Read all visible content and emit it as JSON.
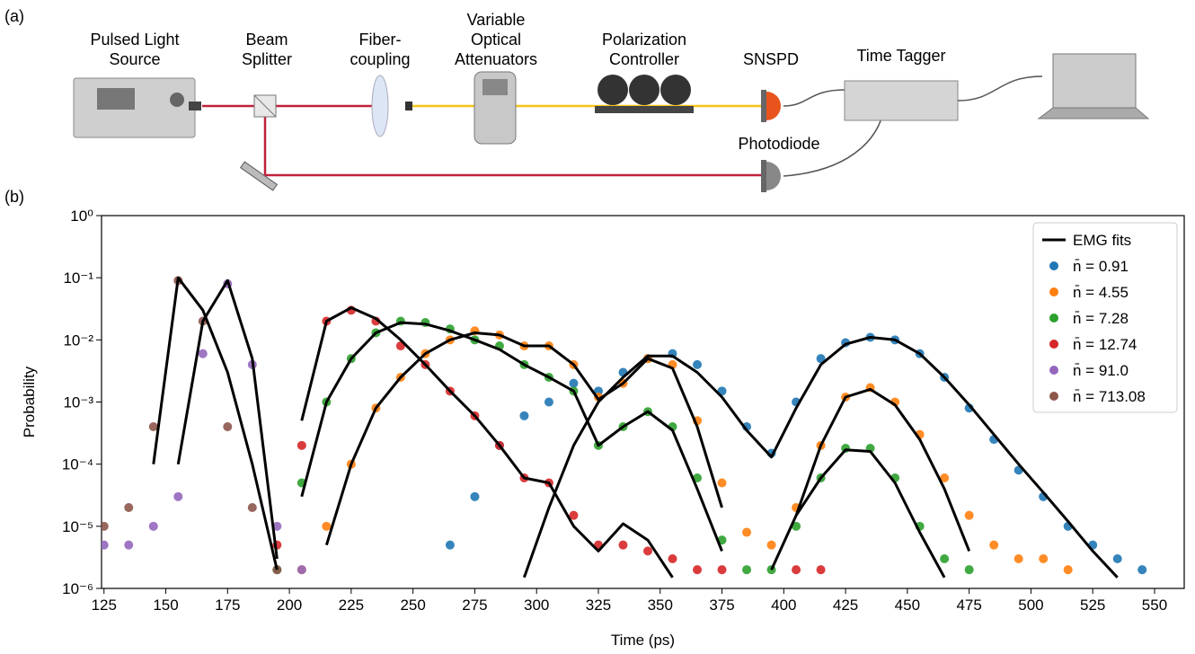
{
  "diagram": {
    "panel_a": "(a)",
    "nodes": [
      {
        "label": [
          "Pulsed Light",
          "Source"
        ]
      },
      {
        "label": [
          "Beam",
          "Splitter"
        ]
      },
      {
        "label": [
          "Fiber-",
          "coupling"
        ]
      },
      {
        "label": [
          "Variable",
          "Optical",
          "Attenuators"
        ]
      },
      {
        "label": [
          "Polarization",
          "Controller"
        ]
      },
      {
        "label": [
          "SNSPD"
        ]
      },
      {
        "label": [
          "Time Tagger"
        ]
      },
      {
        "label": [
          "PC"
        ]
      },
      {
        "label": [
          "Photodiode"
        ]
      }
    ]
  },
  "chart_data": {
    "type": "scatter",
    "panel": "(b)",
    "xlabel": "Time (ps)",
    "ylabel": "Probability",
    "log_y": true,
    "legend": "upper right",
    "fit_name": "EMG fits",
    "fit_color": "#000000",
    "xlim": [
      124,
      562
    ],
    "ylim": [
      1e-06,
      1
    ],
    "xticks": [
      125,
      150,
      175,
      200,
      225,
      250,
      275,
      300,
      325,
      350,
      375,
      400,
      425,
      450,
      475,
      500,
      525,
      550
    ],
    "yticks": [
      {
        "value": 1e-06,
        "label": "10⁻⁶"
      },
      {
        "value": 1e-05,
        "label": "10⁻⁵"
      },
      {
        "value": 0.0001,
        "label": "10⁻⁴"
      },
      {
        "value": 0.001,
        "label": "10⁻³"
      },
      {
        "value": 0.01,
        "label": "10⁻²"
      },
      {
        "value": 0.1,
        "label": "10⁻¹"
      },
      {
        "value": 1,
        "label": "10⁰"
      }
    ],
    "x": [
      125,
      135,
      145,
      155,
      165,
      175,
      185,
      195,
      205,
      215,
      225,
      235,
      245,
      255,
      265,
      275,
      285,
      295,
      305,
      315,
      325,
      335,
      345,
      355,
      365,
      375,
      385,
      395,
      405,
      415,
      425,
      435,
      445,
      455,
      465,
      475,
      485,
      495,
      505,
      515,
      525,
      535,
      545
    ],
    "series": [
      {
        "name": "n̄ = 0.91",
        "color": "#1f77b4",
        "values": [
          null,
          null,
          null,
          null,
          null,
          null,
          null,
          null,
          null,
          null,
          null,
          null,
          null,
          null,
          5e-06,
          3e-05,
          0.0002,
          0.0006,
          0.001,
          0.002,
          0.0015,
          0.003,
          0.005,
          0.006,
          0.004,
          0.0015,
          0.0004,
          0.00015,
          0.001,
          0.005,
          0.009,
          0.011,
          0.01,
          0.006,
          0.0025,
          0.0008,
          0.00025,
          8e-05,
          3e-05,
          1e-05,
          5e-06,
          3e-06,
          2e-06
        ],
        "fit": [
          null,
          null,
          null,
          null,
          null,
          null,
          null,
          null,
          null,
          null,
          null,
          null,
          null,
          null,
          null,
          null,
          null,
          1.5e-06,
          2e-05,
          0.0002,
          0.001,
          0.0025,
          0.0055,
          0.0055,
          0.003,
          0.0012,
          0.00035,
          0.00013,
          0.0008,
          0.004,
          0.0085,
          0.011,
          0.01,
          0.006,
          0.0025,
          0.0009,
          0.0003,
          0.0001,
          3.5e-05,
          1.2e-05,
          4e-06,
          1.5e-06,
          null
        ]
      },
      {
        "name": "n̄ = 4.55",
        "color": "#ff7f0e",
        "values": [
          null,
          null,
          null,
          null,
          null,
          null,
          null,
          null,
          2e-06,
          1e-05,
          0.0001,
          0.0008,
          0.0025,
          0.006,
          0.01,
          0.014,
          0.012,
          0.008,
          0.008,
          0.004,
          0.0012,
          0.002,
          0.005,
          0.004,
          0.0005,
          5e-05,
          8e-06,
          5e-06,
          2e-05,
          0.0002,
          0.0012,
          0.0017,
          0.001,
          0.0003,
          6e-05,
          1.5e-05,
          5e-06,
          3e-06,
          3e-06,
          2e-06,
          null,
          null,
          null
        ],
        "fit": [
          null,
          null,
          null,
          null,
          null,
          null,
          null,
          null,
          null,
          5e-06,
          0.0001,
          0.0008,
          0.0025,
          0.006,
          0.01,
          0.013,
          0.012,
          0.008,
          0.008,
          0.004,
          0.0011,
          0.002,
          0.005,
          0.0035,
          0.0004,
          2e-05,
          null,
          null,
          1.5e-05,
          0.0002,
          0.0012,
          0.0016,
          0.0009,
          0.00025,
          4e-05,
          4e-06,
          null,
          null,
          null,
          null,
          null,
          null,
          null
        ]
      },
      {
        "name": "n̄ = 7.28",
        "color": "#2ca02c",
        "values": [
          null,
          null,
          null,
          null,
          null,
          null,
          null,
          2e-06,
          5e-05,
          0.001,
          0.005,
          0.013,
          0.02,
          0.019,
          0.015,
          0.01,
          0.008,
          0.004,
          0.0025,
          0.0015,
          0.0002,
          0.0004,
          0.0007,
          0.0004,
          6e-05,
          6e-06,
          2e-06,
          2e-06,
          1e-05,
          6e-05,
          0.00018,
          0.00018,
          6e-05,
          1e-05,
          3e-06,
          2e-06,
          null,
          null,
          null,
          null,
          null,
          null,
          null
        ],
        "fit": [
          null,
          null,
          null,
          null,
          null,
          null,
          null,
          null,
          3e-05,
          0.001,
          0.005,
          0.013,
          0.019,
          0.018,
          0.014,
          0.01,
          0.007,
          0.004,
          0.0025,
          0.0015,
          0.0002,
          0.0004,
          0.0007,
          0.00035,
          4e-05,
          4e-06,
          null,
          2e-06,
          1.5e-05,
          6e-05,
          0.00017,
          0.00016,
          5e-05,
          8e-06,
          1.5e-06,
          null,
          null,
          null,
          null,
          null,
          null,
          null,
          null
        ]
      },
      {
        "name": "n̄ = 12.74",
        "color": "#d62728",
        "values": [
          null,
          null,
          null,
          null,
          null,
          null,
          null,
          5e-06,
          0.0002,
          0.02,
          0.03,
          0.02,
          0.008,
          0.004,
          0.0015,
          0.0006,
          0.0002,
          6e-05,
          5e-05,
          1.5e-05,
          5e-06,
          5e-06,
          4e-06,
          3e-06,
          2e-06,
          2e-06,
          null,
          null,
          2e-06,
          2e-06,
          null,
          null,
          null,
          null,
          null,
          null,
          null,
          null,
          null,
          null,
          null,
          null,
          null
        ],
        "fit": [
          null,
          null,
          null,
          null,
          null,
          null,
          null,
          null,
          0.0005,
          0.02,
          0.033,
          0.022,
          0.01,
          0.004,
          0.0015,
          0.0006,
          0.0002,
          6e-05,
          5e-05,
          1e-05,
          4e-06,
          1.1e-05,
          6e-06,
          1.5e-06,
          null,
          null,
          null,
          null,
          null,
          null,
          null,
          null,
          null,
          null,
          null,
          null,
          null,
          null,
          null,
          null,
          null,
          null,
          null
        ]
      },
      {
        "name": "n̄ = 91.0",
        "color": "#9467bd",
        "values": [
          5e-06,
          5e-06,
          1e-05,
          3e-05,
          0.006,
          0.08,
          0.004,
          1e-05,
          2e-06,
          null,
          null,
          null,
          null,
          null,
          null,
          null,
          null,
          null,
          null,
          null,
          null,
          null,
          null,
          null,
          null,
          null,
          null,
          null,
          null,
          null,
          null,
          null,
          null,
          null,
          null,
          null,
          null,
          null,
          null,
          null,
          null,
          null,
          null
        ],
        "fit": [
          null,
          null,
          null,
          0.0001,
          0.02,
          0.09,
          0.005,
          3e-06,
          null,
          null,
          null,
          null,
          null,
          null,
          null,
          null,
          null,
          null,
          null,
          null,
          null,
          null,
          null,
          null,
          null,
          null,
          null,
          null,
          null,
          null,
          null,
          null,
          null,
          null,
          null,
          null,
          null,
          null,
          null,
          null,
          null,
          null,
          null
        ]
      },
      {
        "name": "n̄ = 713.08",
        "color": "#8c564b",
        "values": [
          1e-05,
          2e-05,
          0.0004,
          0.09,
          0.02,
          0.0004,
          2e-05,
          2e-06,
          null,
          null,
          null,
          null,
          null,
          null,
          null,
          null,
          null,
          null,
          null,
          null,
          null,
          null,
          null,
          null,
          null,
          null,
          null,
          null,
          null,
          null,
          null,
          null,
          null,
          null,
          null,
          null,
          null,
          null,
          null,
          null,
          null,
          null,
          null
        ],
        "fit": [
          null,
          null,
          0.0001,
          0.1,
          0.03,
          0.003,
          0.0001,
          2e-06,
          null,
          null,
          null,
          null,
          null,
          null,
          null,
          null,
          null,
          null,
          null,
          null,
          null,
          null,
          null,
          null,
          null,
          null,
          null,
          null,
          null,
          null,
          null,
          null,
          null,
          null,
          null,
          null,
          null,
          null,
          null,
          null,
          null,
          null,
          null
        ]
      }
    ]
  }
}
